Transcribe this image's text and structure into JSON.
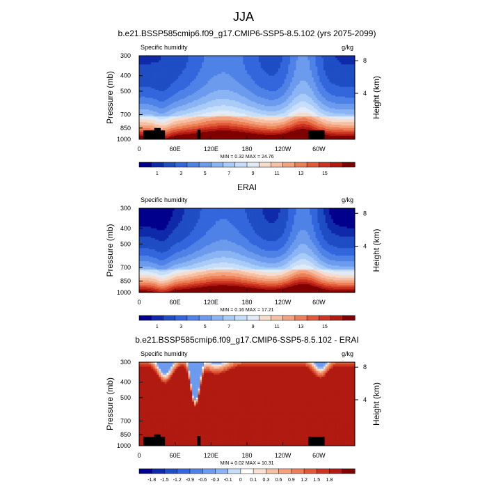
{
  "main_title": "JJA",
  "colors": {
    "abs_scale": [
      "#00008c",
      "#0e2aaa",
      "#1f4dc4",
      "#3366dd",
      "#4f82e6",
      "#6c9bee",
      "#8ab4f4",
      "#a9cbf8",
      "#c6def9",
      "#e2ebf5",
      "#f6dccc",
      "#f6c0a4",
      "#f3a27d",
      "#ec7f57",
      "#e05a38",
      "#cc3320",
      "#b01a10",
      "#7f0000"
    ],
    "diff_scale": [
      "#00008c",
      "#0e2aaa",
      "#1f4dc4",
      "#3366dd",
      "#4f82e6",
      "#6c9bee",
      "#8ab4f4",
      "#c6def9",
      "#ffffff",
      "#f9e0d0",
      "#f6c0a4",
      "#f3a27d",
      "#ec7f57",
      "#e05a38",
      "#cc3320",
      "#b01a10",
      "#7f0000"
    ],
    "topography": "#000000"
  },
  "chart_data": [
    {
      "type": "heatmap",
      "title": "b.e21.BSSP585cmip6.f09_g17.CMIP6-SSP5-8.5.102 (yrs 2075-2099)",
      "left_label": "Specific humidity",
      "right_label": "g/kg",
      "ylabel": "Pressure (mb)",
      "y2label": "Height (km)",
      "y_ticks": [
        "300",
        "400",
        "500",
        "700",
        "850",
        "1000"
      ],
      "y2_ticks": [
        "8",
        "4"
      ],
      "x_ticks": [
        "0",
        "60E",
        "120E",
        "180",
        "120W",
        "60W"
      ],
      "minmax": "MIN =   0.32   MAX =  24.76",
      "colorbar_ticks": [
        "1",
        "3",
        "5",
        "7",
        "9",
        "11",
        "13",
        "15"
      ],
      "colorbar_levels": [
        0.5,
        1,
        2,
        3,
        4,
        5,
        6,
        7,
        8,
        9,
        10,
        11,
        12,
        13,
        14,
        15,
        16
      ],
      "scale": "abs",
      "moisture_offset": 0.8,
      "topography": true
    },
    {
      "type": "heatmap",
      "title": "ERAI",
      "left_label": "Specific humidity",
      "right_label": "g/kg",
      "ylabel": "Pressure (mb)",
      "y2label": "Height (km)",
      "y_ticks": [
        "300",
        "400",
        "500",
        "700",
        "850",
        "1000"
      ],
      "y2_ticks": [
        "8",
        "4"
      ],
      "x_ticks": [
        "0",
        "60E",
        "120E",
        "180",
        "120W",
        "60W"
      ],
      "minmax": "MIN =   0.16   MAX =  17.21",
      "colorbar_ticks": [
        "1",
        "3",
        "5",
        "7",
        "9",
        "11",
        "13",
        "15"
      ],
      "colorbar_levels": [
        0.5,
        1,
        2,
        3,
        4,
        5,
        6,
        7,
        8,
        9,
        10,
        11,
        12,
        13,
        14,
        15,
        16
      ],
      "scale": "abs",
      "moisture_offset": 0.0,
      "topography": false
    },
    {
      "type": "heatmap",
      "title": "b.e21.BSSP585cmip6.f09_g17.CMIP6-SSP5-8.5.102 - ERAI",
      "left_label": "Specific humidity",
      "right_label": "g/kg",
      "ylabel": "Pressure (mb)",
      "y2label": "Height (km)",
      "y_ticks": [
        "300",
        "400",
        "500",
        "700",
        "850",
        "1000"
      ],
      "y2_ticks": [
        "8",
        "4"
      ],
      "x_ticks": [
        "0",
        "60E",
        "120E",
        "180",
        "120W",
        "60W"
      ],
      "minmax": "MIN =   0.02   MAX =  10.31",
      "colorbar_ticks": [
        "-1.8",
        "-1.5",
        "-1.2",
        "-0.9",
        "-0.6",
        "-0.3",
        "-0.1",
        "0",
        "0.1",
        "0.3",
        "0.6",
        "0.9",
        "1.2",
        "1.5",
        "1.8"
      ],
      "colorbar_levels": [
        -1.8,
        -1.5,
        -1.2,
        -0.9,
        -0.6,
        -0.3,
        -0.1,
        0,
        0.1,
        0.3,
        0.6,
        0.9,
        1.2,
        1.5,
        1.8
      ],
      "scale": "diff",
      "moisture_offset": 0.0,
      "topography": true
    }
  ]
}
